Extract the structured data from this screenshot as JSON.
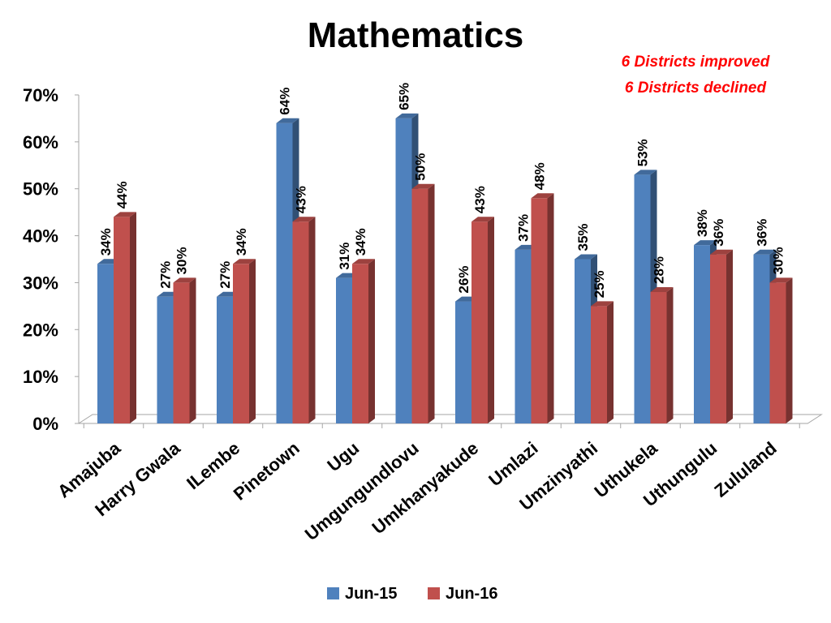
{
  "chart_data": {
    "type": "bar",
    "title": "Mathematics",
    "annotations": [
      "6 Districts improved",
      "6 Districts declined"
    ],
    "categories": [
      "Amajuba",
      "Harry Gwala",
      "ILembe",
      "Pinetown",
      "Ugu",
      "Umgungundlovu",
      "Umkhanyakude",
      "Umlazi",
      "Umzinyathi",
      "Uthukela",
      "Uthungulu",
      "Zululand"
    ],
    "series": [
      {
        "name": "Jun-15",
        "values": [
          34,
          27,
          27,
          64,
          31,
          65,
          26,
          37,
          35,
          53,
          38,
          36
        ],
        "color": "#4f81bd"
      },
      {
        "name": "Jun-16",
        "values": [
          44,
          30,
          34,
          43,
          34,
          50,
          43,
          48,
          25,
          28,
          36,
          30
        ],
        "color": "#c0504d"
      }
    ],
    "ylim": [
      0,
      70
    ],
    "yticks": [
      "0%",
      "10%",
      "20%",
      "30%",
      "40%",
      "50%",
      "60%",
      "70%"
    ],
    "value_suffix": "%",
    "legend_position": "bottom",
    "grid": false
  }
}
